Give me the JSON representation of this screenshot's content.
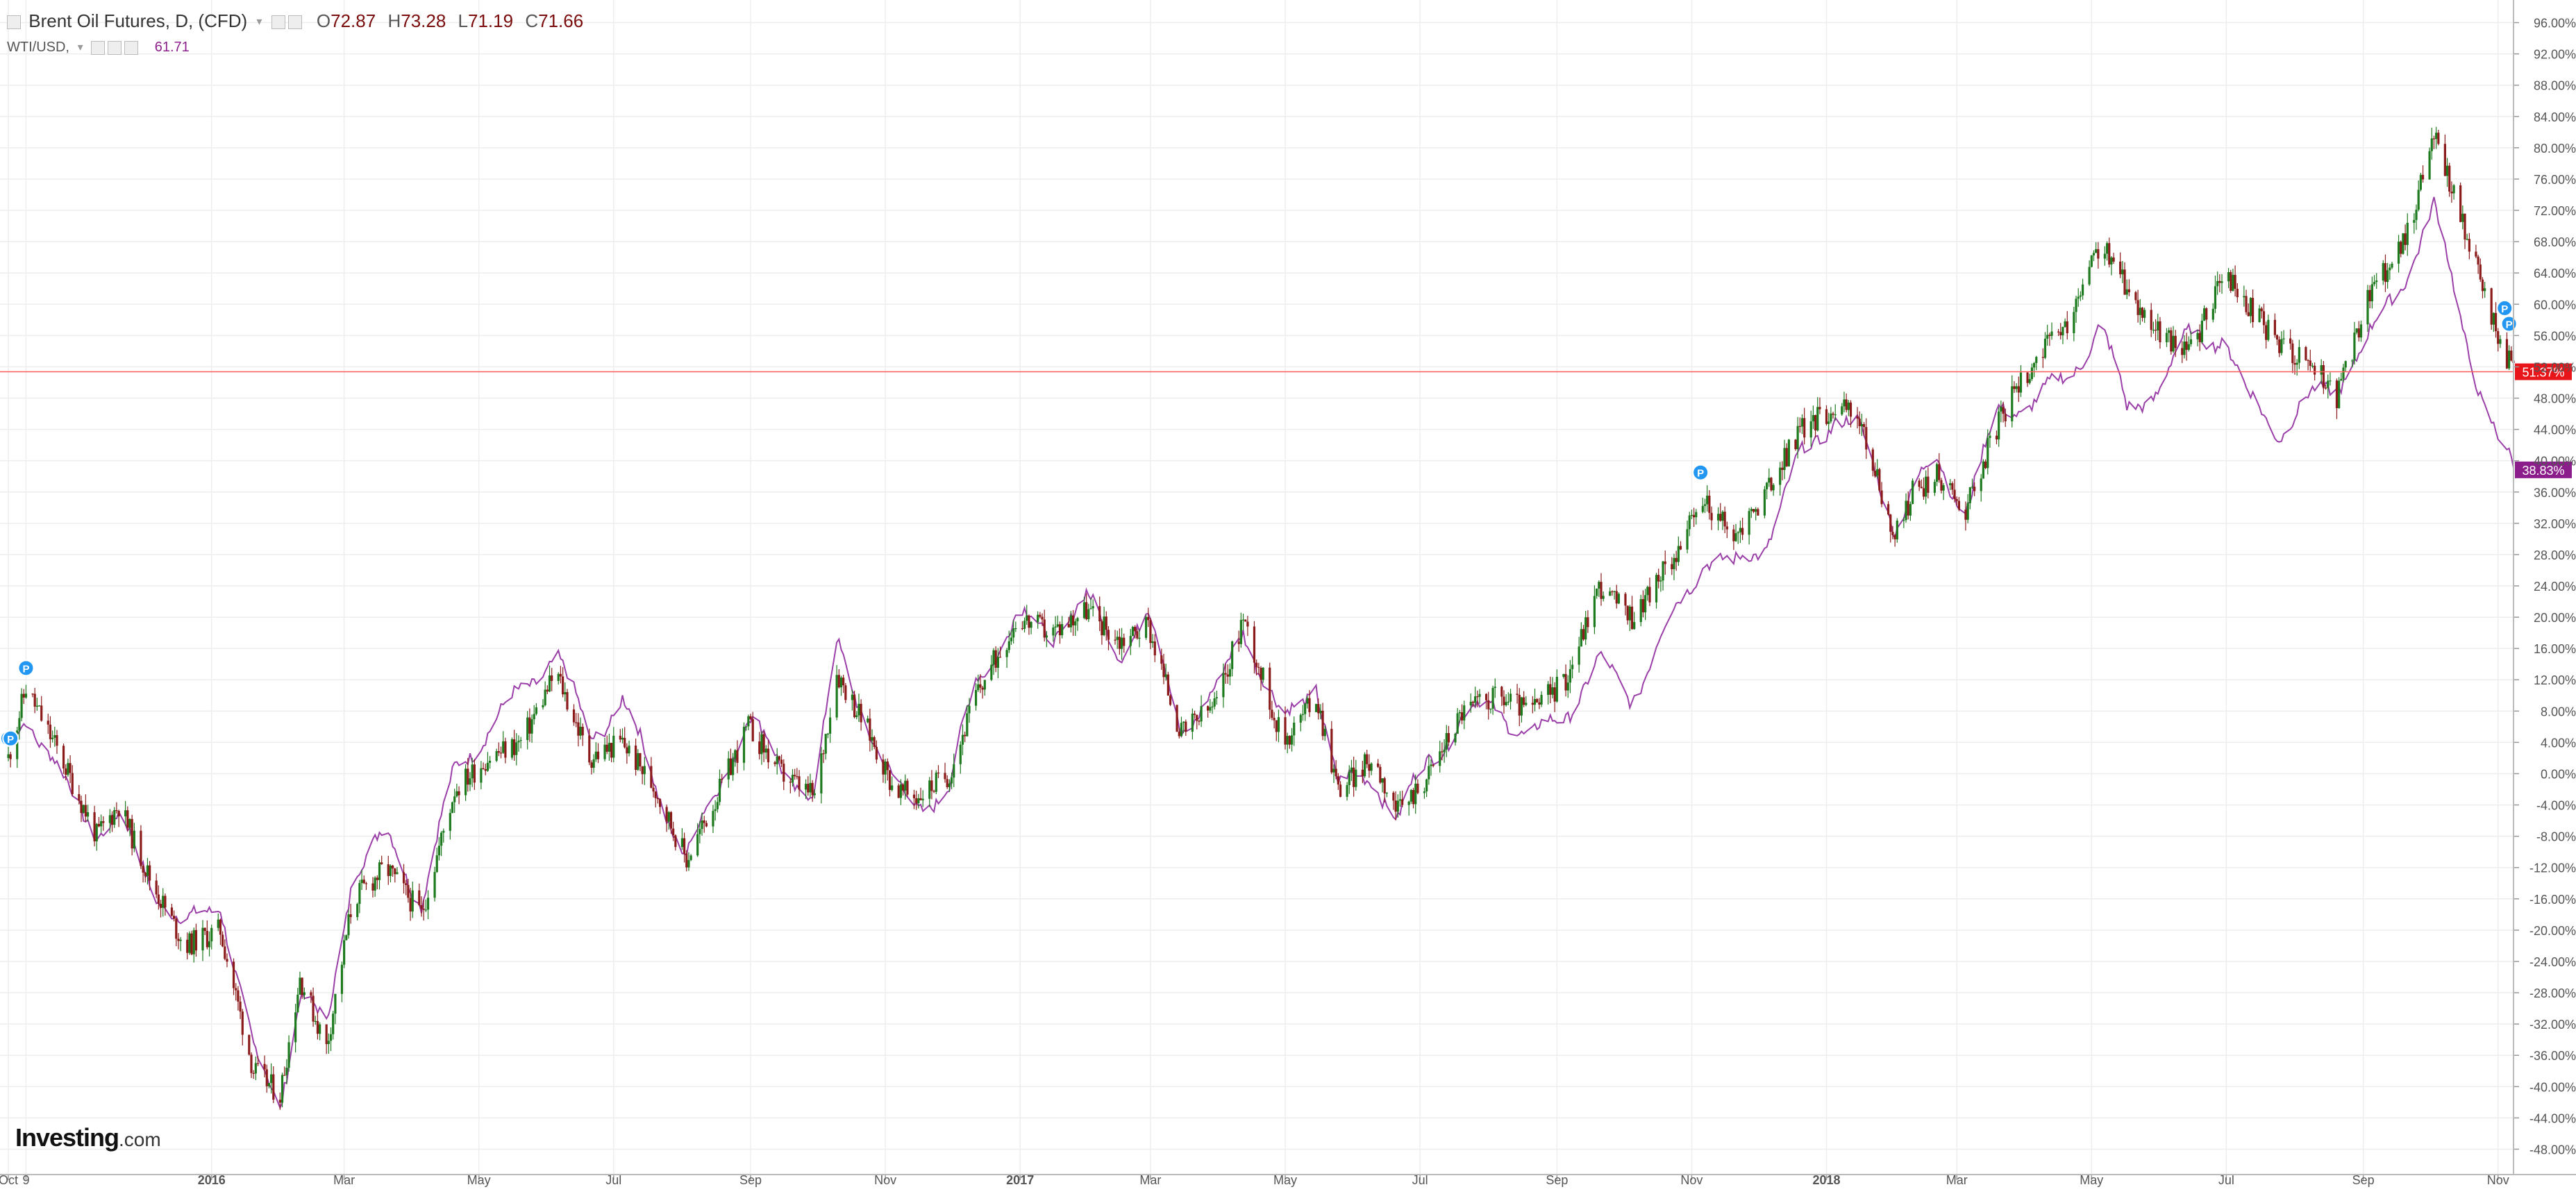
{
  "legend": {
    "main_title": "Brent Oil Futures, D, (CFD)",
    "o_label": "O",
    "o_value": "72.87",
    "h_label": "H",
    "h_value": "73.28",
    "l_label": "L",
    "l_value": "71.19",
    "c_label": "C",
    "c_value": "71.66",
    "compare_symbol": "WTI/USD,",
    "compare_value": "61.71"
  },
  "logo": {
    "brand": "Investing",
    "suffix": ".com"
  },
  "colors": {
    "up_candle": "#1e7a1e",
    "down_candle": "#8b1a1a",
    "wti_line": "#9b3fa8",
    "current_line": "#ff5a5a",
    "current_badge": "#e8161b",
    "wti_badge": "#8b1e8b",
    "marker": "#2196f3",
    "grid": "#eeeeee",
    "axis_text": "#555555"
  },
  "chart_data": {
    "type": "line",
    "title": "Brent Oil Futures, D, (CFD)",
    "ylabel": "",
    "ylim": [
      -50,
      98
    ],
    "y_ticks": [
      96,
      92,
      88,
      84,
      80,
      76,
      72,
      68,
      64,
      60,
      56,
      52,
      48,
      44,
      40,
      36,
      32,
      28,
      24,
      20,
      16,
      12,
      8,
      4,
      0,
      -4,
      -8,
      -12,
      -16,
      -20,
      -24,
      -28,
      -32,
      -36,
      -40,
      -44,
      -48
    ],
    "y_tick_labels": [
      "96.00%",
      "92.00%",
      "88.00%",
      "84.00%",
      "80.00%",
      "76.00%",
      "72.00%",
      "68.00%",
      "64.00%",
      "60.00%",
      "56.00%",
      "52.00%",
      "48.00%",
      "44.00%",
      "40.00%",
      "36.00%",
      "32.00%",
      "28.00%",
      "24.00%",
      "20.00%",
      "16.00%",
      "12.00%",
      "8.00%",
      "4.00%",
      "0.00%",
      "-4.00%",
      "-8.00%",
      "-12.00%",
      "-16.00%",
      "-20.00%",
      "-24.00%",
      "-28.00%",
      "-32.00%",
      "-36.00%",
      "-40.00%",
      "-44.00%",
      "-48.00%"
    ],
    "x_axis": {
      "start": "2015-10-01",
      "end": "2018-11-08",
      "tick_dates": [
        "2015-10-01",
        "2015-10-09",
        "2016-01-01",
        "2016-03-01",
        "2016-05-01",
        "2016-07-01",
        "2016-09-01",
        "2016-11-01",
        "2017-01-01",
        "2017-03-01",
        "2017-05-01",
        "2017-07-01",
        "2017-09-01",
        "2017-11-01",
        "2018-01-01",
        "2018-03-01",
        "2018-05-01",
        "2018-07-01",
        "2018-09-01",
        "2018-11-01"
      ],
      "tick_labels": [
        "Oct",
        "9",
        "2016",
        "Mar",
        "May",
        "Jul",
        "Sep",
        "Nov",
        "2017",
        "Mar",
        "May",
        "Jul",
        "Sep",
        "Nov",
        "2018",
        "Mar",
        "May",
        "Jul",
        "Sep",
        "Nov"
      ],
      "bold_ticks": [
        "2016",
        "2017",
        "2018"
      ]
    },
    "series": [
      {
        "name": "Brent Oil Futures",
        "style": "candlestick",
        "x": [
          "2015-10-01",
          "2015-10-09",
          "2015-10-25",
          "2015-11-10",
          "2015-11-20",
          "2015-12-05",
          "2015-12-20",
          "2016-01-05",
          "2016-01-20",
          "2016-02-01",
          "2016-02-10",
          "2016-02-22",
          "2016-03-05",
          "2016-03-20",
          "2016-04-05",
          "2016-04-20",
          "2016-05-05",
          "2016-05-20",
          "2016-06-05",
          "2016-06-20",
          "2016-07-05",
          "2016-07-20",
          "2016-08-03",
          "2016-08-15",
          "2016-08-31",
          "2016-09-15",
          "2016-09-30",
          "2016-10-10",
          "2016-10-25",
          "2016-11-05",
          "2016-11-15",
          "2016-11-30",
          "2016-12-12",
          "2016-12-31",
          "2017-01-15",
          "2017-01-31",
          "2017-02-15",
          "2017-02-28",
          "2017-03-15",
          "2017-03-31",
          "2017-04-12",
          "2017-04-30",
          "2017-05-15",
          "2017-05-25",
          "2017-06-10",
          "2017-06-21",
          "2017-07-05",
          "2017-07-20",
          "2017-08-05",
          "2017-08-20",
          "2017-09-05",
          "2017-09-20",
          "2017-10-05",
          "2017-10-20",
          "2017-11-07",
          "2017-11-20",
          "2017-12-05",
          "2017-12-20",
          "2018-01-05",
          "2018-01-15",
          "2018-02-01",
          "2018-02-09",
          "2018-02-20",
          "2018-03-05",
          "2018-03-20",
          "2018-04-05",
          "2018-04-20",
          "2018-05-05",
          "2018-05-17",
          "2018-06-01",
          "2018-06-15",
          "2018-06-30",
          "2018-07-10",
          "2018-07-25",
          "2018-08-10",
          "2018-08-20",
          "2018-09-05",
          "2018-09-20",
          "2018-10-03",
          "2018-10-12",
          "2018-10-25",
          "2018-11-01",
          "2018-11-08"
        ],
        "values": [
          2,
          11,
          2,
          -8,
          -4,
          -14,
          -22,
          -20,
          -38,
          -41,
          -26,
          -35,
          -16,
          -12,
          -18,
          -2,
          2,
          4,
          13,
          2,
          4,
          -2,
          -11,
          -4,
          6,
          0,
          -3,
          13,
          5,
          -2,
          -3,
          0,
          10,
          20,
          18,
          21,
          17,
          19,
          5,
          9,
          20,
          4,
          10,
          -2,
          2,
          -5,
          0,
          8,
          10,
          8,
          12,
          24,
          20,
          26,
          35,
          30,
          36,
          44,
          47,
          46,
          30,
          36,
          38,
          34,
          45,
          53,
          57,
          68,
          62,
          56,
          54,
          64,
          60,
          55,
          52,
          48,
          62,
          68,
          82,
          74,
          62,
          56,
          51.37
        ]
      },
      {
        "name": "WTI/USD",
        "style": "line",
        "x": [
          "2015-10-01",
          "2015-10-09",
          "2015-10-25",
          "2015-11-10",
          "2015-11-20",
          "2015-12-05",
          "2015-12-20",
          "2016-01-05",
          "2016-01-20",
          "2016-02-01",
          "2016-02-10",
          "2016-02-22",
          "2016-03-05",
          "2016-03-20",
          "2016-04-05",
          "2016-04-20",
          "2016-05-05",
          "2016-05-20",
          "2016-06-05",
          "2016-06-20",
          "2016-07-05",
          "2016-07-20",
          "2016-08-03",
          "2016-08-15",
          "2016-08-31",
          "2016-09-15",
          "2016-09-30",
          "2016-10-10",
          "2016-10-25",
          "2016-11-05",
          "2016-11-15",
          "2016-11-30",
          "2016-12-12",
          "2016-12-31",
          "2017-01-15",
          "2017-01-31",
          "2017-02-15",
          "2017-02-28",
          "2017-03-15",
          "2017-03-31",
          "2017-04-12",
          "2017-04-30",
          "2017-05-15",
          "2017-05-25",
          "2017-06-10",
          "2017-06-21",
          "2017-07-05",
          "2017-07-20",
          "2017-08-05",
          "2017-08-20",
          "2017-09-05",
          "2017-09-20",
          "2017-10-05",
          "2017-10-20",
          "2017-11-07",
          "2017-11-20",
          "2017-12-05",
          "2017-12-20",
          "2018-01-05",
          "2018-01-15",
          "2018-02-01",
          "2018-02-09",
          "2018-02-20",
          "2018-03-05",
          "2018-03-20",
          "2018-04-05",
          "2018-04-20",
          "2018-05-05",
          "2018-05-17",
          "2018-06-01",
          "2018-06-15",
          "2018-06-30",
          "2018-07-10",
          "2018-07-25",
          "2018-08-10",
          "2018-08-20",
          "2018-09-05",
          "2018-09-20",
          "2018-10-03",
          "2018-10-12",
          "2018-10-25",
          "2018-11-01",
          "2018-11-08"
        ],
        "values": [
          4,
          8,
          -1,
          -7,
          -6,
          -14,
          -20,
          -16,
          -36,
          -42,
          -28,
          -33,
          -12,
          -8,
          -16,
          0,
          6,
          10,
          16,
          4,
          10,
          -2,
          -10,
          -4,
          8,
          0,
          -2,
          16,
          6,
          -2,
          -4,
          -2,
          12,
          20,
          18,
          22,
          16,
          20,
          6,
          10,
          19,
          6,
          12,
          -2,
          0,
          -6,
          2,
          7,
          9,
          4,
          8,
          14,
          10,
          18,
          28,
          26,
          30,
          40,
          46,
          44,
          32,
          36,
          40,
          34,
          46,
          48,
          50,
          58,
          46,
          50,
          56,
          56,
          48,
          44,
          48,
          50,
          56,
          64,
          72,
          62,
          48,
          42,
          38.83
        ]
      }
    ],
    "badges": [
      {
        "label": "51.37%",
        "value": 51.37,
        "series": "Brent Oil Futures"
      },
      {
        "label": "38.83%",
        "value": 38.83,
        "series": "WTI/USD"
      }
    ],
    "markers": [
      {
        "label": "P",
        "date": "2015-10-09",
        "value": 13.5
      },
      {
        "label": "P",
        "date": "2015-10-01",
        "value": 4.5
      },
      {
        "label": "P",
        "date": "2015-10-02",
        "value": 4.5
      },
      {
        "label": "P",
        "date": "2017-11-05",
        "value": 38.5
      },
      {
        "label": "P",
        "date": "2018-11-04",
        "value": 59.5
      },
      {
        "label": "P",
        "date": "2018-11-06",
        "value": 57.5
      }
    ],
    "current_line_value": 51.37,
    "grid": true,
    "legend_position": "top-left"
  }
}
